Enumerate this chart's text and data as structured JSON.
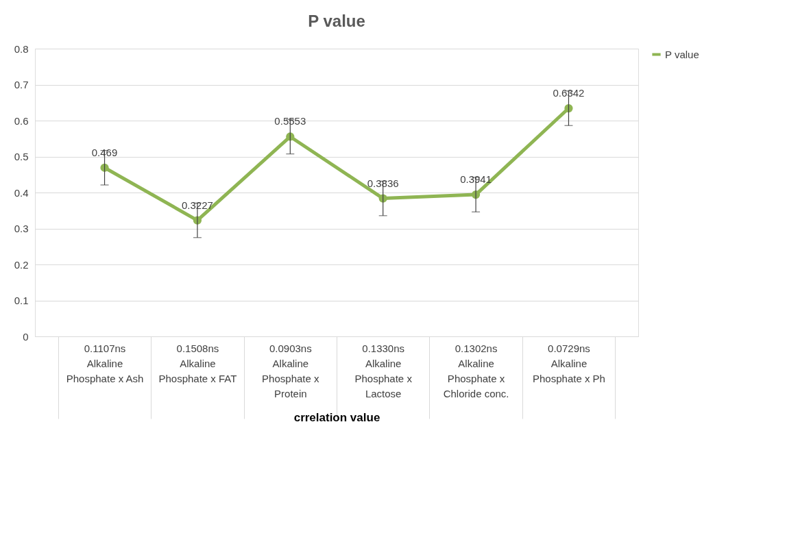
{
  "chart_data": {
    "type": "line",
    "title": "P value",
    "xlabel": "crrelation value",
    "categories": [
      "0.1107ns\nAlkaline Phosphate x Ash",
      "0.1508ns\nAlkaline Phosphate x FAT",
      "0.0903ns\nAlkaline Phosphate x Protein",
      "0.1330ns\nAlkaline Phosphate x Lactose",
      "0.1302ns\nAlkaline Phosphate x Chloride conc.",
      "0.0729ns\nAlkaline Phosphate x Ph"
    ],
    "series": [
      {
        "name": "P value",
        "color": "#8fb553",
        "values": [
          0.469,
          0.3227,
          0.5553,
          0.3836,
          0.3941,
          0.6342
        ],
        "errors": [
          0.048,
          0.048,
          0.048,
          0.048,
          0.048,
          0.048
        ]
      }
    ],
    "ylim": [
      0,
      0.8
    ],
    "yticks": [
      0,
      0.1,
      0.2,
      0.3,
      0.4,
      0.5,
      0.6,
      0.7,
      0.8
    ],
    "data_labels": true,
    "grid": "y",
    "legend": "right",
    "marker": "circle",
    "line_style": "solid"
  }
}
